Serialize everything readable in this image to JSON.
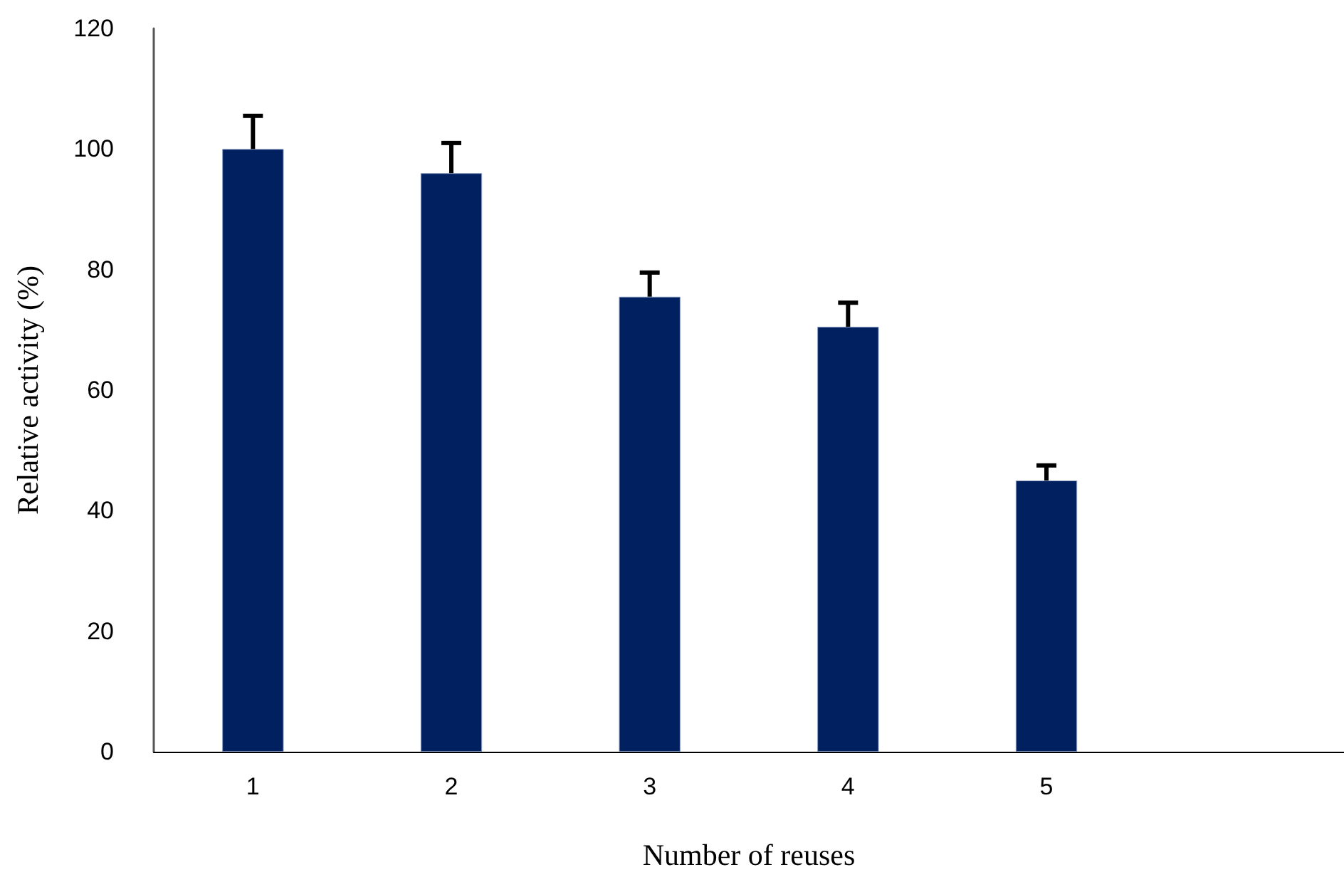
{
  "chart_data": {
    "type": "bar",
    "xlabel": "Number of reuses",
    "ylabel": "Relative activity (%)",
    "categories": [
      "1",
      "2",
      "3",
      "4",
      "5",
      null
    ],
    "series": [
      {
        "color": "#012060",
        "values": [
          100,
          96,
          75.5,
          70.5,
          45,
          null
        ],
        "errors": [
          [
            100,
            105.5
          ],
          [
            96,
            101
          ],
          [
            75.5,
            79.5
          ],
          [
            70.5,
            74.5
          ],
          [
            45,
            47.5
          ],
          null
        ]
      }
    ],
    "ylim": [
      0,
      120
    ],
    "yticks": [
      0,
      20,
      40,
      60,
      80,
      100,
      120
    ],
    "grid": false
  }
}
